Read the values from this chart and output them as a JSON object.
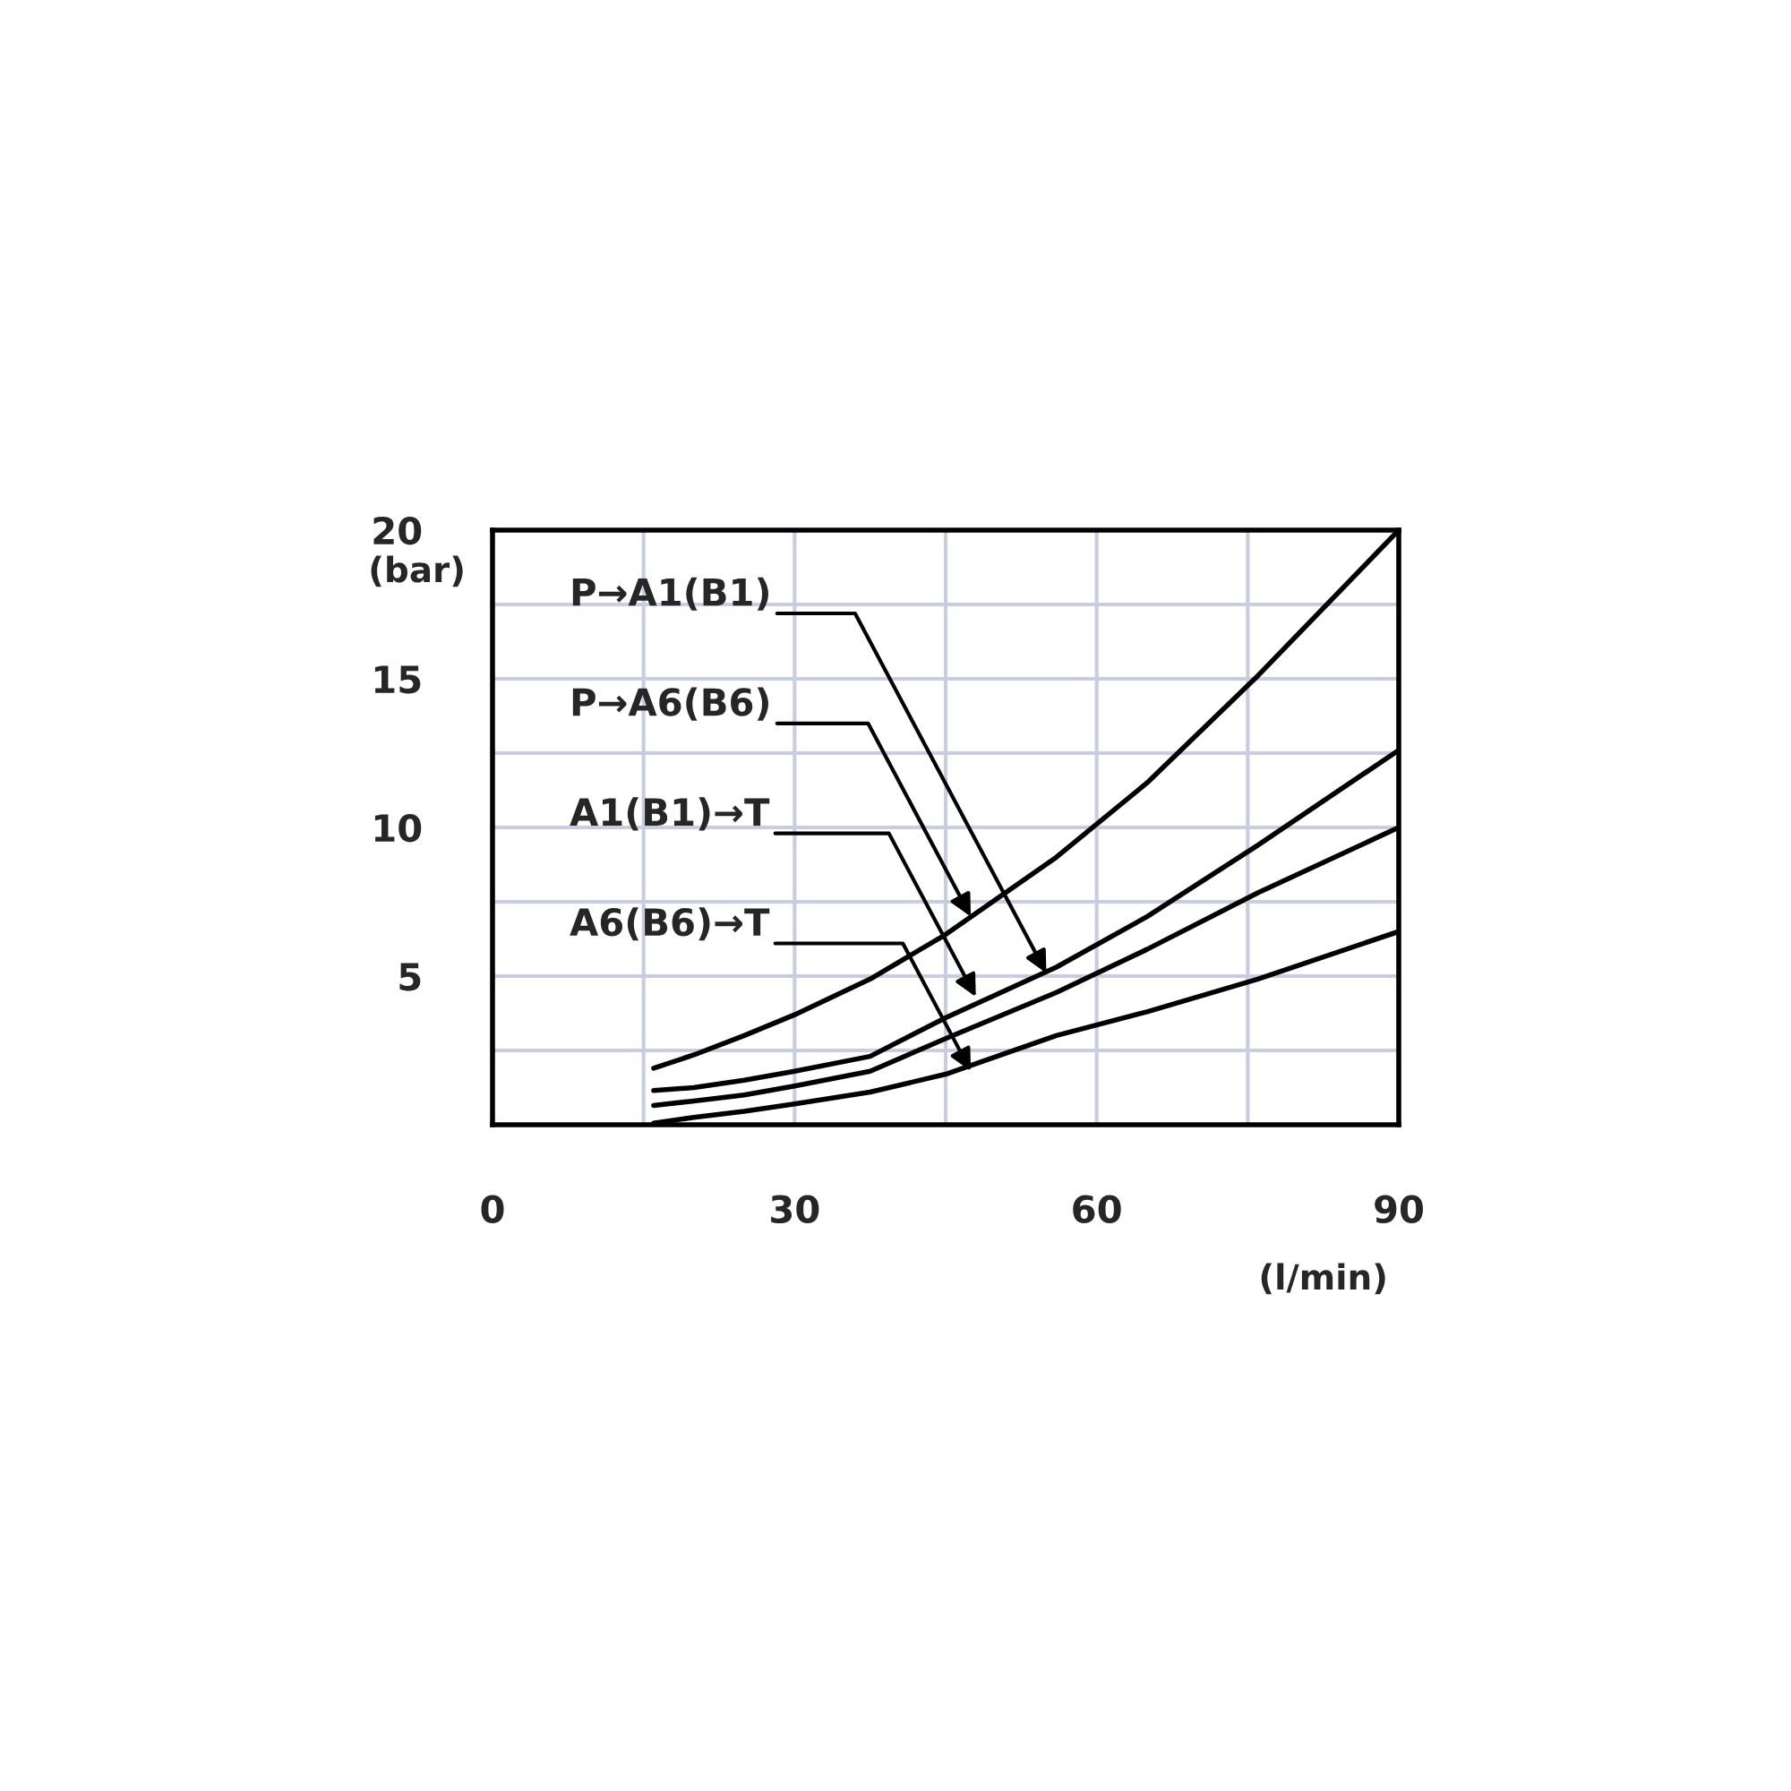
{
  "chart_data": {
    "type": "line",
    "xlabel": "(l/min)",
    "ylabel": "(bar)",
    "xlim": [
      0,
      90
    ],
    "ylim": [
      0,
      20
    ],
    "xticks": [
      0,
      {
        "value": 15,
        "label": null
      },
      30,
      {
        "value": 45,
        "label": null
      },
      60,
      {
        "value": 75,
        "label": null
      },
      90
    ],
    "yticks": [
      {
        "value": 2.5,
        "label": null
      },
      5,
      {
        "value": 7.5,
        "label": null
      },
      10,
      {
        "value": 12.5,
        "label": null
      },
      15,
      {
        "value": 17.5,
        "label": null
      },
      20
    ],
    "grid": true,
    "legend": false,
    "marker": "none",
    "line_style": "solid",
    "series": [
      {
        "color": "#000000",
        "x": [
          16,
          20,
          25,
          30,
          37.5,
          45,
          56,
          65,
          76,
          90
        ],
        "values": [
          1.9,
          2.35,
          3.0,
          3.7,
          4.9,
          6.4,
          9.0,
          11.5,
          15.1,
          20
        ]
      },
      {
        "color": "#000000",
        "x": [
          16,
          20,
          25,
          30,
          37.5,
          45,
          56,
          65,
          76,
          90
        ],
        "values": [
          1.15,
          1.25,
          1.5,
          1.8,
          2.3,
          3.6,
          5.3,
          7.0,
          9.4,
          12.6
        ]
      },
      {
        "color": "#000000",
        "x": [
          16,
          20,
          25,
          30,
          37.5,
          45,
          56,
          65,
          76,
          90
        ],
        "values": [
          0.65,
          0.8,
          1.0,
          1.3,
          1.8,
          2.9,
          4.45,
          5.9,
          7.8,
          10.0
        ]
      },
      {
        "color": "#000000",
        "x": [
          16,
          20,
          25,
          30,
          37.5,
          45,
          56,
          65,
          76,
          90
        ],
        "values": [
          0.05,
          0.25,
          0.45,
          0.7,
          1.1,
          1.7,
          3.0,
          3.8,
          4.9,
          6.5
        ]
      }
    ],
    "annotations": [
      {
        "text": "P→A1(B1)",
        "x": 55,
        "y": 5.1
      },
      {
        "text": "P→A6(B6)",
        "x": 47.5,
        "y": 7.0
      },
      {
        "text": "A1(B1)→T",
        "x": 48,
        "y": 4.3
      },
      {
        "text": "A6(B6)→T",
        "x": 47.5,
        "y": 1.8
      }
    ]
  }
}
